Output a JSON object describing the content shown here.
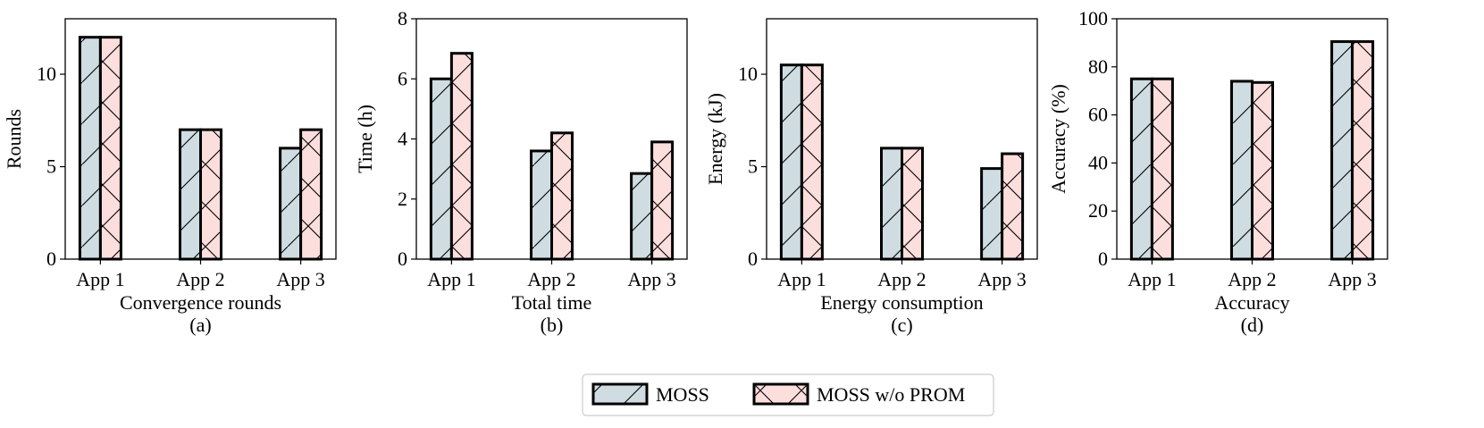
{
  "colors": {
    "moss": "#cfdde2",
    "moss_wo_prom": "#fcdedd",
    "edge": "#000000"
  },
  "legend": {
    "entries": [
      {
        "label": "MOSS",
        "hatch": "diagonal"
      },
      {
        "label": "MOSS w/o PROM",
        "hatch": "cross"
      }
    ],
    "placement": "bottom-center"
  },
  "chart_data": [
    {
      "type": "bar",
      "xlabel": "Convergence rounds",
      "caption": "(a)",
      "ylabel": "Rounds",
      "categories": [
        "App 1",
        "App 2",
        "App 3"
      ],
      "ylim": [
        0,
        13
      ],
      "yticks": [
        0,
        5,
        10
      ],
      "ytick_labels": [
        "0",
        "5",
        "10"
      ],
      "series": [
        {
          "name": "MOSS",
          "values": [
            12,
            7,
            6
          ]
        },
        {
          "name": "MOSS w/o PROM",
          "values": [
            12,
            7,
            7
          ]
        }
      ]
    },
    {
      "type": "bar",
      "xlabel": "Total time",
      "caption": "(b)",
      "ylabel": "Time (h)",
      "categories": [
        "App 1",
        "App 2",
        "App 3"
      ],
      "ylim": [
        0,
        8
      ],
      "yticks": [
        0,
        2,
        4,
        6,
        8
      ],
      "ytick_labels": [
        "0",
        "2",
        "4",
        "6",
        "8"
      ],
      "series": [
        {
          "name": "MOSS",
          "values": [
            6.0,
            3.6,
            2.85
          ]
        },
        {
          "name": "MOSS w/o PROM",
          "values": [
            6.85,
            4.2,
            3.9
          ]
        }
      ]
    },
    {
      "type": "bar",
      "xlabel": "Energy consumption",
      "caption": "(c)",
      "ylabel": "Energy (kJ)",
      "categories": [
        "App 1",
        "App 2",
        "App 3"
      ],
      "ylim": [
        0,
        13
      ],
      "yticks": [
        0,
        5,
        10
      ],
      "ytick_labels": [
        "0",
        "5",
        "10"
      ],
      "series": [
        {
          "name": "MOSS",
          "values": [
            10.5,
            6.0,
            4.9
          ]
        },
        {
          "name": "MOSS w/o PROM",
          "values": [
            10.5,
            6.0,
            5.7
          ]
        }
      ]
    },
    {
      "type": "bar",
      "xlabel": "Accuracy",
      "caption": "(d)",
      "ylabel": "Accuracy (%)",
      "categories": [
        "App 1",
        "App 2",
        "App 3"
      ],
      "ylim": [
        0,
        100
      ],
      "yticks": [
        0,
        20,
        40,
        60,
        80,
        100
      ],
      "ytick_labels": [
        "0",
        "20",
        "40",
        "60",
        "80",
        "100"
      ],
      "series": [
        {
          "name": "MOSS",
          "values": [
            75,
            74,
            90.5
          ]
        },
        {
          "name": "MOSS w/o PROM",
          "values": [
            75,
            73.5,
            90.5
          ]
        }
      ]
    }
  ]
}
